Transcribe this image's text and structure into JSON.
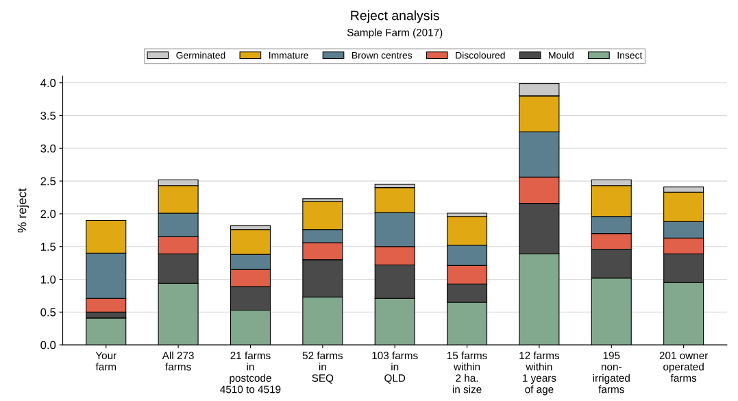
{
  "chart_data": {
    "type": "bar",
    "title": "Reject analysis",
    "subtitle": "Sample Farm (2017)",
    "ylabel": "% reject",
    "categories": [
      "Your\nfarm",
      "All 273\nfarms",
      "21 farms\nin\npostcode\n4510 to 4519",
      "52 farms\nin\nSEQ",
      "103 farms\nin\nQLD",
      "15 farms\nwithin\n2 ha.\nin size",
      "12 farms\nwithin\n1 years\nof age",
      "195\nnon-\nirrigated\nfarms",
      "201 owner\noperated\nfarms"
    ],
    "stacked": true,
    "series": [
      {
        "name": "Insect",
        "color": "#82a88e",
        "values": [
          0.41,
          0.94,
          0.53,
          0.73,
          0.71,
          0.65,
          1.39,
          1.02,
          0.95
        ]
      },
      {
        "name": "Mould",
        "color": "#4a4a4a",
        "values": [
          0.09,
          0.45,
          0.36,
          0.57,
          0.51,
          0.28,
          0.77,
          0.44,
          0.44
        ]
      },
      {
        "name": "Discoloured",
        "color": "#e0604a",
        "values": [
          0.21,
          0.26,
          0.26,
          0.26,
          0.28,
          0.28,
          0.4,
          0.24,
          0.24
        ]
      },
      {
        "name": "Brown centres",
        "color": "#5b7f8f",
        "values": [
          0.69,
          0.36,
          0.23,
          0.2,
          0.52,
          0.31,
          0.69,
          0.26,
          0.25
        ]
      },
      {
        "name": "Immature",
        "color": "#e0a914",
        "values": [
          0.5,
          0.42,
          0.38,
          0.43,
          0.38,
          0.44,
          0.55,
          0.47,
          0.45
        ]
      },
      {
        "name": "Germinated",
        "color": "#c8c8c8",
        "values": [
          null,
          0.09,
          0.06,
          0.04,
          0.05,
          0.05,
          0.19,
          0.09,
          0.08
        ]
      }
    ],
    "ylim": [
      0,
      4.1
    ],
    "yticks": [
      {
        "value": 0,
        "label": "0.0"
      },
      {
        "value": 0.5,
        "label": "0.5"
      },
      {
        "value": 1,
        "label": "1.0"
      },
      {
        "value": 1.5,
        "label": "1.5"
      },
      {
        "value": 2,
        "label": "2.0"
      },
      {
        "value": 2.5,
        "label": "2.5"
      },
      {
        "value": 3,
        "label": "3.0"
      },
      {
        "value": 3.5,
        "label": "3.5"
      },
      {
        "value": 4,
        "label": "4.0"
      }
    ],
    "grid": "y",
    "legend": "top"
  }
}
